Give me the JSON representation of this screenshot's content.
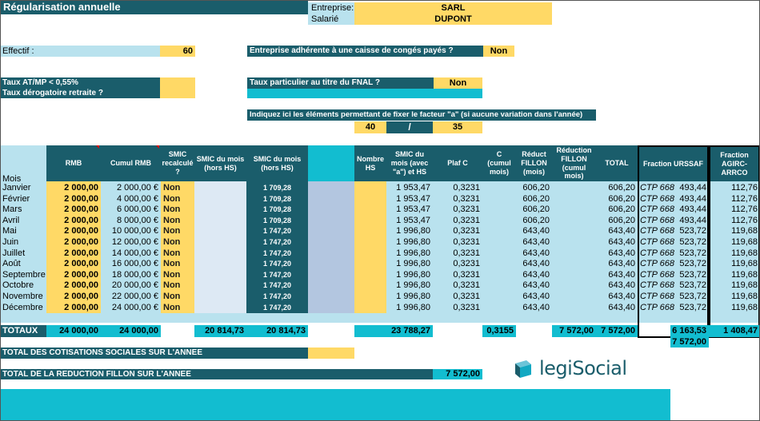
{
  "title": "Régularisation annuelle",
  "entreprise": {
    "label": "Entreprise:",
    "value": "SARL"
  },
  "salarie": {
    "label": "Salarié",
    "value": "DUPONT"
  },
  "effectif": {
    "label": "Effectif :",
    "value": "60"
  },
  "conges": {
    "label": "Entreprise adhérente à une caisse de congés payés ?",
    "value": "Non"
  },
  "taux_atmp": {
    "label": "Taux AT/MP < 0,55%"
  },
  "taux_derog": {
    "label": "Taux dérogatoire retraite ?"
  },
  "fnal": {
    "label": "Taux particulier au titre du FNAL ?",
    "value": "Non"
  },
  "facteur": {
    "label": "Indiquez ici les éléments permettant de fixer le facteur \"a\" (si aucune variation dans l'année)",
    "num": "40",
    "sep": "/",
    "den": "35"
  },
  "headers": {
    "mois": "Mois",
    "rmb": "RMB",
    "cumul_rmb": "Cumul RMB",
    "smic_recalc": "SMIC recalculé ?",
    "smic_mois_hs1": "SMIC du mois (hors HS)",
    "smic_mois_hs2": "SMIC du mois (hors HS)",
    "nombre_hs": "Nombre HS",
    "smic_avec": "SMIC du mois (avec \"a\") et HS",
    "plaf_c": "Plaf C",
    "c_cumul": "C (cumul mois)",
    "reduct": "Réduct FILLON (mois)",
    "reduction_cumul": "Réduction FILLON (cumul mois)",
    "total": "TOTAL",
    "fraction_urssaf": "Fraction URSSAF",
    "fraction_agirc": "Fraction AGIRC-ARRCO"
  },
  "rows": [
    {
      "mois": "Janvier",
      "rmb": "2 000,00",
      "cumul": "2 000,00 €",
      "smic": "Non",
      "smic_hs": "1 709,28",
      "smic_avec": "1 953,47",
      "plaf": "0,3231",
      "reduct": "606,20",
      "total": "606,20",
      "ctp": "CTP 668",
      "urssaf": "493,44",
      "agirc": "112,76"
    },
    {
      "mois": "Février",
      "rmb": "2 000,00",
      "cumul": "4 000,00 €",
      "smic": "Non",
      "smic_hs": "1 709,28",
      "smic_avec": "1 953,47",
      "plaf": "0,3231",
      "reduct": "606,20",
      "total": "606,20",
      "ctp": "CTP 668",
      "urssaf": "493,44",
      "agirc": "112,76"
    },
    {
      "mois": "Mars",
      "rmb": "2 000,00",
      "cumul": "6 000,00 €",
      "smic": "Non",
      "smic_hs": "1 709,28",
      "smic_avec": "1 953,47",
      "plaf": "0,3231",
      "reduct": "606,20",
      "total": "606,20",
      "ctp": "CTP 668",
      "urssaf": "493,44",
      "agirc": "112,76"
    },
    {
      "mois": "Avril",
      "rmb": "2 000,00",
      "cumul": "8 000,00 €",
      "smic": "Non",
      "smic_hs": "1 709,28",
      "smic_avec": "1 953,47",
      "plaf": "0,3231",
      "reduct": "606,20",
      "total": "606,20",
      "ctp": "CTP 668",
      "urssaf": "493,44",
      "agirc": "112,76"
    },
    {
      "mois": "Mai",
      "rmb": "2 000,00",
      "cumul": "10 000,00 €",
      "smic": "Non",
      "smic_hs": "1 747,20",
      "smic_avec": "1 996,80",
      "plaf": "0,3231",
      "reduct": "643,40",
      "total": "643,40",
      "ctp": "CTP 668",
      "urssaf": "523,72",
      "agirc": "119,68"
    },
    {
      "mois": "Juin",
      "rmb": "2 000,00",
      "cumul": "12 000,00 €",
      "smic": "Non",
      "smic_hs": "1 747,20",
      "smic_avec": "1 996,80",
      "plaf": "0,3231",
      "reduct": "643,40",
      "total": "643,40",
      "ctp": "CTP 668",
      "urssaf": "523,72",
      "agirc": "119,68"
    },
    {
      "mois": "Juillet",
      "rmb": "2 000,00",
      "cumul": "14 000,00 €",
      "smic": "Non",
      "smic_hs": "1 747,20",
      "smic_avec": "1 996,80",
      "plaf": "0,3231",
      "reduct": "643,40",
      "total": "643,40",
      "ctp": "CTP 668",
      "urssaf": "523,72",
      "agirc": "119,68"
    },
    {
      "mois": "Août",
      "rmb": "2 000,00",
      "cumul": "16 000,00 €",
      "smic": "Non",
      "smic_hs": "1 747,20",
      "smic_avec": "1 996,80",
      "plaf": "0,3231",
      "reduct": "643,40",
      "total": "643,40",
      "ctp": "CTP 668",
      "urssaf": "523,72",
      "agirc": "119,68"
    },
    {
      "mois": "Septembre",
      "rmb": "2 000,00",
      "cumul": "18 000,00 €",
      "smic": "Non",
      "smic_hs": "1 747,20",
      "smic_avec": "1 996,80",
      "plaf": "0,3231",
      "reduct": "643,40",
      "total": "643,40",
      "ctp": "CTP 668",
      "urssaf": "523,72",
      "agirc": "119,68"
    },
    {
      "mois": "Octobre",
      "rmb": "2 000,00",
      "cumul": "20 000,00 €",
      "smic": "Non",
      "smic_hs": "1 747,20",
      "smic_avec": "1 996,80",
      "plaf": "0,3231",
      "reduct": "643,40",
      "total": "643,40",
      "ctp": "CTP 668",
      "urssaf": "523,72",
      "agirc": "119,68"
    },
    {
      "mois": "Novembre",
      "rmb": "2 000,00",
      "cumul": "22 000,00 €",
      "smic": "Non",
      "smic_hs": "1 747,20",
      "smic_avec": "1 996,80",
      "plaf": "0,3231",
      "reduct": "643,40",
      "total": "643,40",
      "ctp": "CTP 668",
      "urssaf": "523,72",
      "agirc": "119,68"
    },
    {
      "mois": "Décembre",
      "rmb": "2 000,00",
      "cumul": "24 000,00 €",
      "smic": "Non",
      "smic_hs": "1 747,20",
      "smic_avec": "1 996,80",
      "plaf": "0,3231",
      "reduct": "643,40",
      "total": "643,40",
      "ctp": "CTP 668",
      "urssaf": "523,72",
      "agirc": "119,68"
    }
  ],
  "totaux": {
    "label": "TOTAUX",
    "rmb": "24 000,00",
    "cumul": "24 000,00",
    "smic_hs1": "20 814,73",
    "smic_hs2": "20 814,73",
    "smic_avec": "23 788,27",
    "c_cumul": "0,3155",
    "reduction_cumul": "7 572,00",
    "total": "7 572,00",
    "urssaf": "6 163,53",
    "agirc": "1 408,47",
    "urssaf_sub": "7 572,00"
  },
  "total_cotisations": {
    "label": "TOTAL DES COTISATIONS SOCIALES SUR L'ANNEE"
  },
  "total_reduction": {
    "label": "TOTAL DE LA REDUCTION FILLON SUR L'ANNEE",
    "value": "7 572,00"
  },
  "logo": {
    "text": "legiSocial",
    "icon": "legisocial-logo-icon"
  },
  "colors": {
    "teal": "#1a5d6b",
    "light_blue": "#b9e2ee",
    "yellow": "#ffd966",
    "cyan": "#12bdd0"
  }
}
